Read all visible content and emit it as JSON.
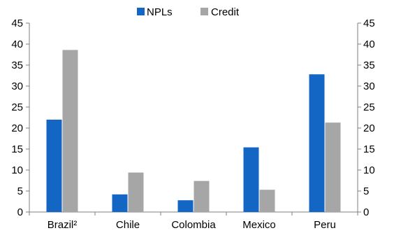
{
  "colors": {
    "npl": "#1466C5",
    "credit": "#A6A6A6",
    "axis": "#7F7F7F"
  },
  "legend": {
    "position": "top-center"
  },
  "chart_data": {
    "type": "bar",
    "categories": [
      "Brazil²",
      "Chile",
      "Colombia",
      "Mexico",
      "Peru"
    ],
    "series": [
      {
        "name": "NPLs",
        "values": [
          22.0,
          4.2,
          2.8,
          15.4,
          32.8
        ]
      },
      {
        "name": "Credit",
        "values": [
          38.6,
          9.4,
          7.4,
          5.3,
          21.3
        ]
      }
    ],
    "ylim": [
      0,
      45
    ],
    "yticks": [
      0,
      5,
      10,
      15,
      20,
      25,
      30,
      35,
      40,
      45
    ],
    "left_axis": true,
    "right_axis": true,
    "grid": false
  }
}
